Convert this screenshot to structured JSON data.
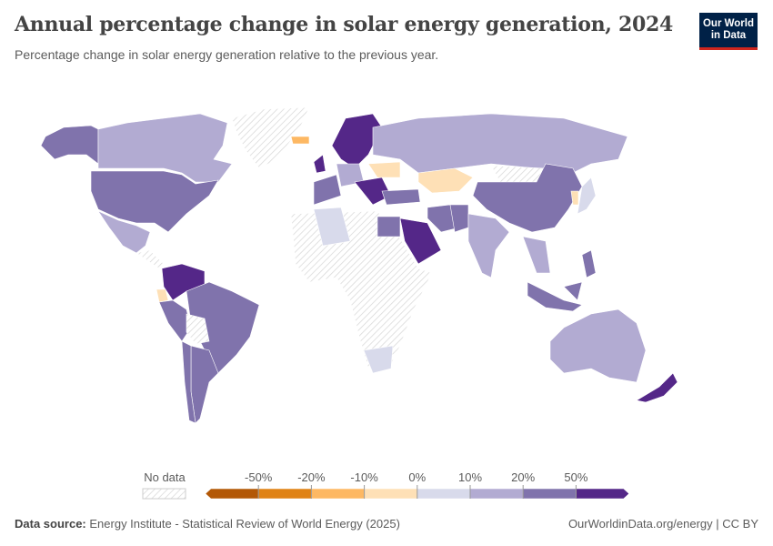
{
  "header": {
    "title": "Annual percentage change in solar energy generation, 2024",
    "subtitle": "Percentage change in solar energy generation relative to the previous year.",
    "logo": "Our World in Data"
  },
  "legend": {
    "no_data_label": "No data",
    "no_data_color": "#e8e8e8",
    "ticks": [
      "-50%",
      "-20%",
      "-10%",
      "0%",
      "10%",
      "20%",
      "50%"
    ],
    "bins": [
      {
        "range": "< -50%",
        "color": "#b35806"
      },
      {
        "range": "-50% to -20%",
        "color": "#e08214"
      },
      {
        "range": "-20% to -10%",
        "color": "#fdb863"
      },
      {
        "range": "-10% to 0%",
        "color": "#fee0b6"
      },
      {
        "range": "0% to 10%",
        "color": "#d8daeb"
      },
      {
        "range": "10% to 20%",
        "color": "#b2abd2"
      },
      {
        "range": "20% to 50%",
        "color": "#8073ac"
      },
      {
        "range": "> 50%",
        "color": "#542788"
      }
    ]
  },
  "map": {
    "countries": [
      {
        "id": "alaska",
        "bin": 6
      },
      {
        "id": "canada",
        "bin": 5
      },
      {
        "id": "greenland",
        "bin": null
      },
      {
        "id": "usa",
        "bin": 6
      },
      {
        "id": "mexico",
        "bin": 5
      },
      {
        "id": "central-america",
        "bin": null
      },
      {
        "id": "colombia-venezuela",
        "bin": 7
      },
      {
        "id": "ecuador",
        "bin": 3
      },
      {
        "id": "peru",
        "bin": 6
      },
      {
        "id": "brazil",
        "bin": 6
      },
      {
        "id": "bolivia",
        "bin": null
      },
      {
        "id": "argentina",
        "bin": 6
      },
      {
        "id": "chile",
        "bin": 6
      },
      {
        "id": "iceland",
        "bin": 2
      },
      {
        "id": "uk",
        "bin": 7
      },
      {
        "id": "scandinavia",
        "bin": 7
      },
      {
        "id": "western-europe",
        "bin": 6
      },
      {
        "id": "central-europe",
        "bin": 5
      },
      {
        "id": "balkans",
        "bin": 7
      },
      {
        "id": "ukraine",
        "bin": 3
      },
      {
        "id": "turkey",
        "bin": 6
      },
      {
        "id": "russia",
        "bin": 5
      },
      {
        "id": "kazakhstan",
        "bin": 3
      },
      {
        "id": "mongolia",
        "bin": null
      },
      {
        "id": "china",
        "bin": 6
      },
      {
        "id": "iran",
        "bin": 6
      },
      {
        "id": "saudi-arabia",
        "bin": 7
      },
      {
        "id": "egypt",
        "bin": 6
      },
      {
        "id": "africa",
        "bin": null
      },
      {
        "id": "algeria",
        "bin": 4
      },
      {
        "id": "south-africa",
        "bin": 4
      },
      {
        "id": "india",
        "bin": 5
      },
      {
        "id": "pakistan",
        "bin": 6
      },
      {
        "id": "southeast-asia",
        "bin": 5
      },
      {
        "id": "japan",
        "bin": 4
      },
      {
        "id": "south-korea",
        "bin": 3
      },
      {
        "id": "philippines",
        "bin": 6
      },
      {
        "id": "indonesia",
        "bin": 6
      },
      {
        "id": "australia",
        "bin": 5
      },
      {
        "id": "new-zealand",
        "bin": 7
      }
    ]
  },
  "footer": {
    "source_label": "Data source:",
    "source": "Energy Institute - Statistical Review of World Energy (2025)",
    "credit": "OurWorldinData.org/energy | CC BY"
  }
}
